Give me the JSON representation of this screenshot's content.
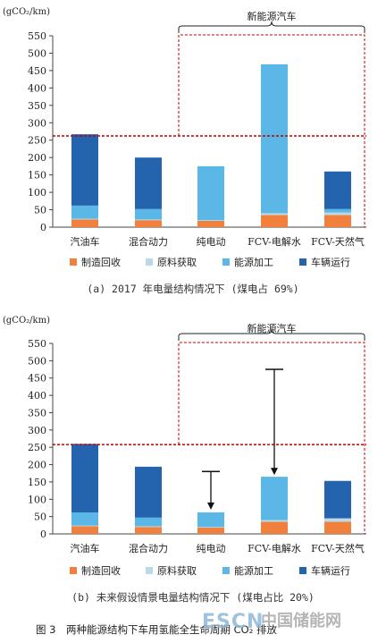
{
  "colors": {
    "manufacture": "#f0803c",
    "raw": "#bcd9ea",
    "energy": "#5bb7e6",
    "operation": "#2463ad",
    "reference_line": "#c00000",
    "nev_box": "#c00000"
  },
  "legend": [
    {
      "key": "manufacture",
      "label": "制造回收"
    },
    {
      "key": "raw",
      "label": "原料获取"
    },
    {
      "key": "energy",
      "label": "能源加工"
    },
    {
      "key": "operation",
      "label": "车辆运行"
    }
  ],
  "figure_caption": "图 3　两种能源结构下车用氢能全生命周期 CO₂ 排放",
  "watermark": {
    "brand": "ESCN",
    "text": "中国储能网"
  },
  "chart_data": [
    {
      "type": "bar",
      "stacked": true,
      "unit_label": "(gCO₂/km)",
      "caption": "(a) 2017 年电量结构情况下 (煤电占 69%)",
      "ylim": [
        0,
        550
      ],
      "yticks": [
        0,
        50,
        100,
        150,
        200,
        250,
        300,
        350,
        400,
        450,
        500,
        550
      ],
      "categories": [
        "汽油车",
        "混合动力",
        "纯电动",
        "FCV-电解水",
        "FCV-天然气"
      ],
      "series": [
        {
          "name": "制造回收",
          "key": "manufacture",
          "values": [
            22,
            20,
            18,
            35,
            35
          ]
        },
        {
          "name": "原料获取",
          "key": "raw",
          "values": [
            2,
            2,
            2,
            5,
            7
          ]
        },
        {
          "name": "能源加工",
          "key": "energy",
          "values": [
            38,
            30,
            155,
            428,
            10
          ]
        },
        {
          "name": "车辆运行",
          "key": "operation",
          "values": [
            205,
            148,
            0,
            0,
            108
          ]
        }
      ],
      "reference_value": 262,
      "group_label": "新能源汽车",
      "group_range": [
        2,
        4
      ],
      "arrows": []
    },
    {
      "type": "bar",
      "stacked": true,
      "unit_label": "(gCO₂/km)",
      "caption": "(b) 未来假设情景电量结构情况下 (煤电占比 20%)",
      "ylim": [
        0,
        550
      ],
      "yticks": [
        0,
        50,
        100,
        150,
        200,
        250,
        300,
        350,
        400,
        450,
        500,
        550
      ],
      "categories": [
        "汽油车",
        "混合动力",
        "纯电动",
        "FCV-电解水",
        "FCV-天然气"
      ],
      "series": [
        {
          "name": "制造回收",
          "key": "manufacture",
          "values": [
            22,
            20,
            18,
            35,
            35
          ]
        },
        {
          "name": "原料获取",
          "key": "raw",
          "values": [
            2,
            2,
            2,
            5,
            10
          ]
        },
        {
          "name": "能源加工",
          "key": "energy",
          "values": [
            38,
            25,
            42,
            125,
            0
          ]
        },
        {
          "name": "车辆运行",
          "key": "operation",
          "values": [
            198,
            147,
            0,
            0,
            108
          ]
        }
      ],
      "reference_value": 258,
      "group_label": "新能源汽车",
      "group_range": [
        2,
        4
      ],
      "arrows": [
        {
          "category": 2,
          "from": 180,
          "to": 70
        },
        {
          "category": 3,
          "from": 475,
          "to": 170
        }
      ]
    }
  ]
}
